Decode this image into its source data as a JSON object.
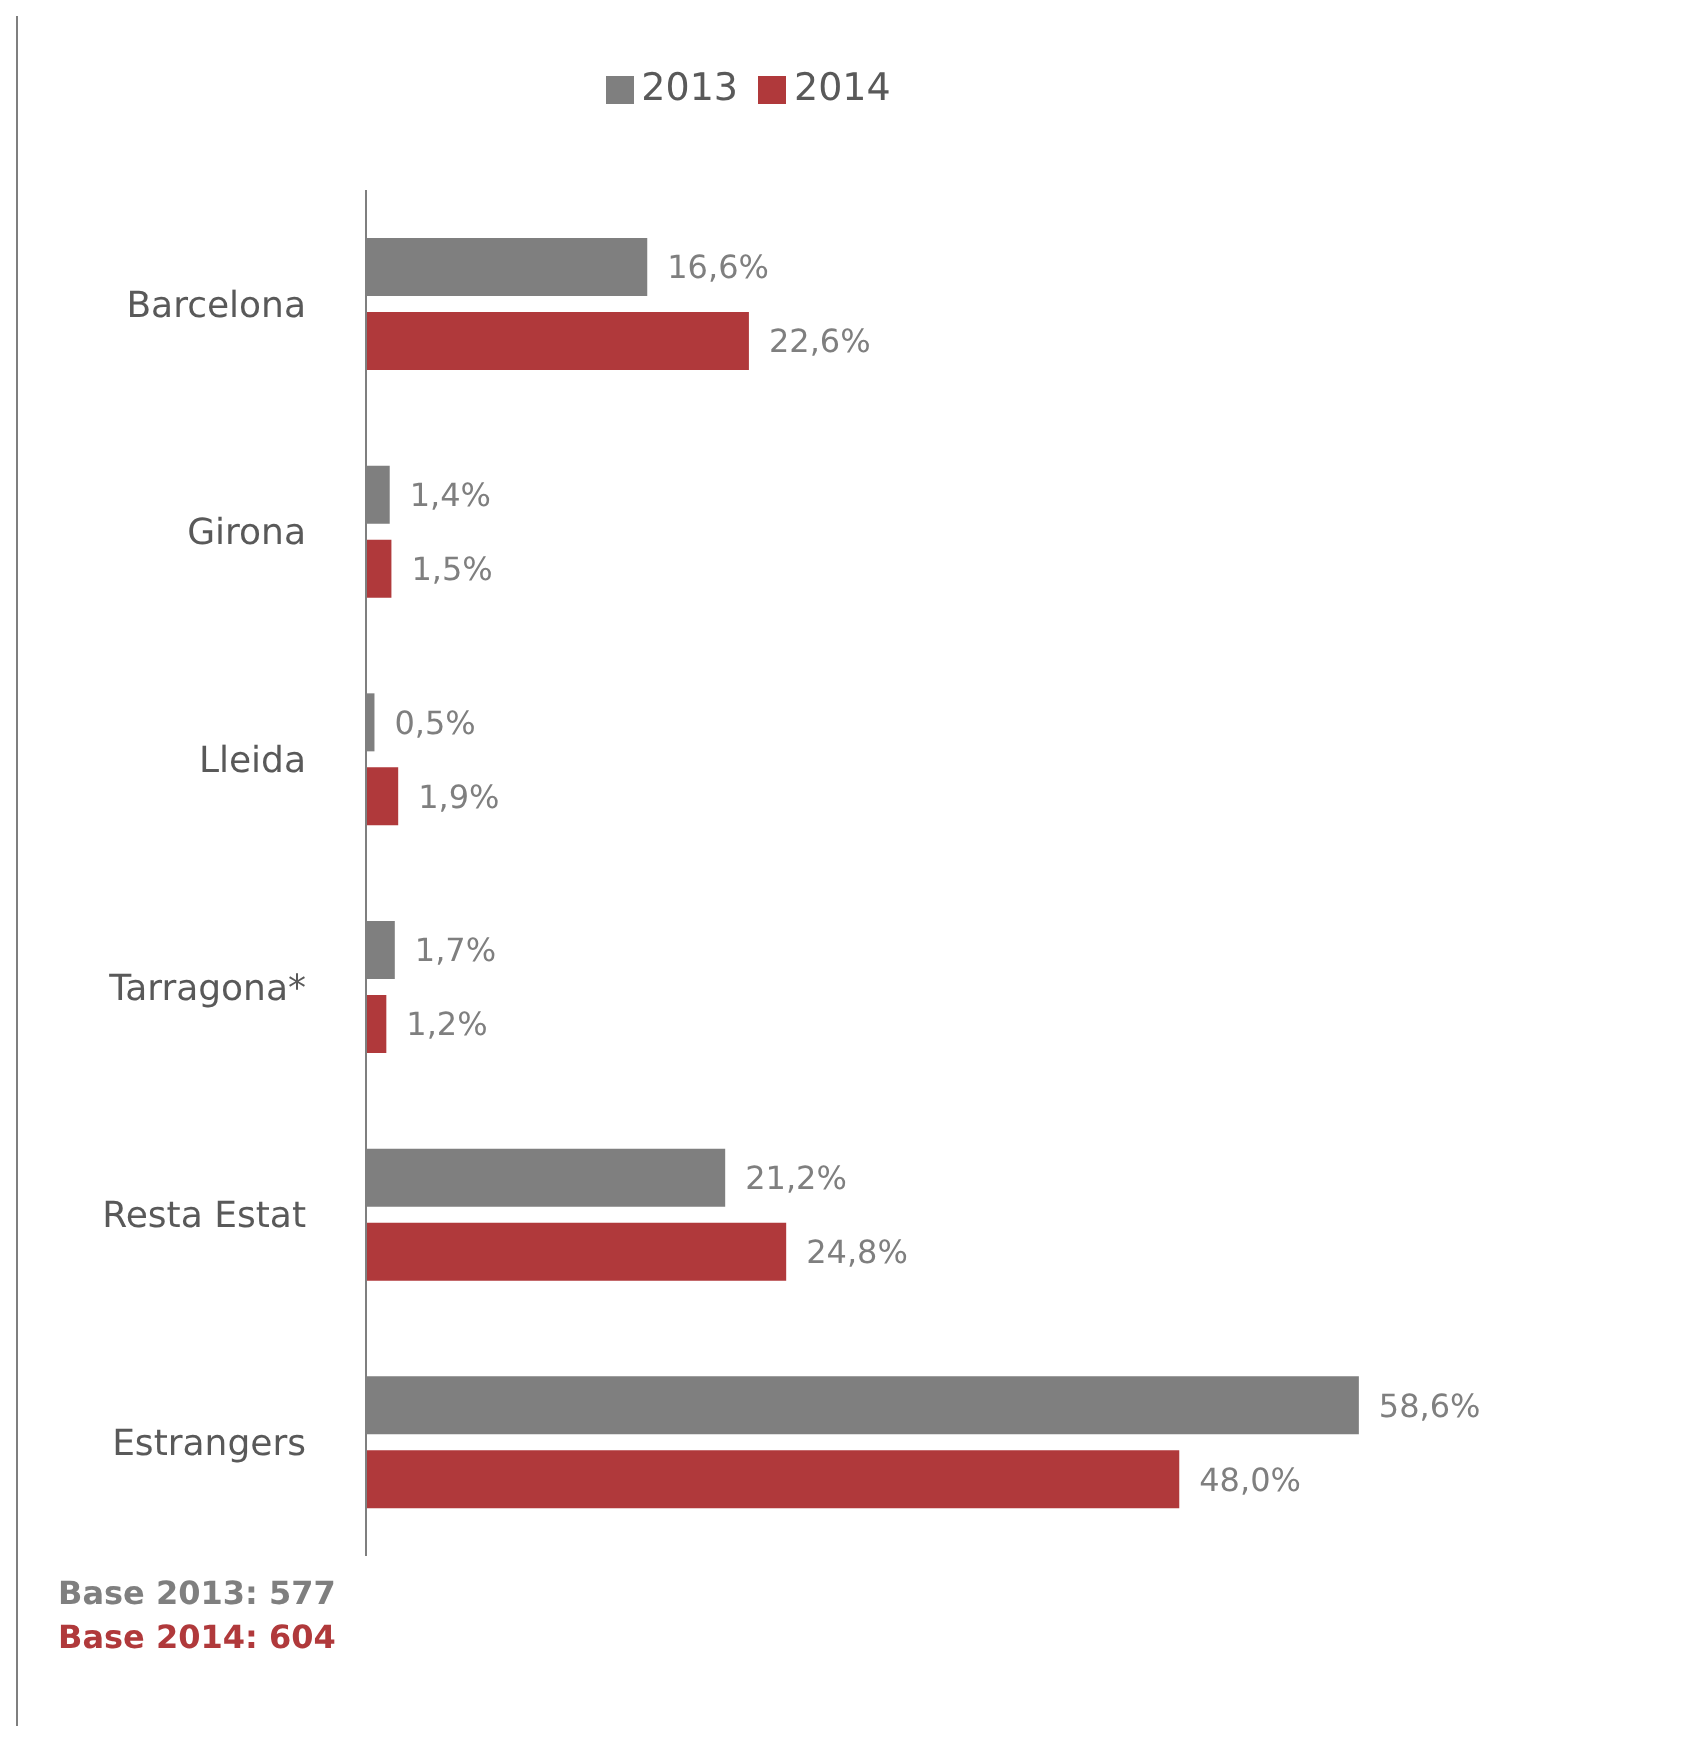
{
  "chart_data": {
    "type": "bar",
    "orientation": "horizontal",
    "categories": [
      "Barcelona",
      "Girona",
      "Lleida",
      "Tarragona*",
      "Resta Estat",
      "Estrangers"
    ],
    "series": [
      {
        "name": "2013",
        "color": "#7f7f7f",
        "values": [
          16.6,
          1.4,
          0.5,
          1.7,
          21.2,
          58.6
        ],
        "value_labels": [
          "16,6%",
          "1,4%",
          "0,5%",
          "1,7%",
          "21,2%",
          "58,6%"
        ]
      },
      {
        "name": "2014",
        "color": "#b0393b",
        "values": [
          22.6,
          1.5,
          1.9,
          1.2,
          24.8,
          48.0
        ],
        "value_labels": [
          "22,6%",
          "1,5%",
          "1,9%",
          "1,2%",
          "24,8%",
          "48,0%"
        ]
      }
    ],
    "legend": "top",
    "annotations": [
      "Base 2013: 577",
      "Base 2014: 604"
    ]
  }
}
